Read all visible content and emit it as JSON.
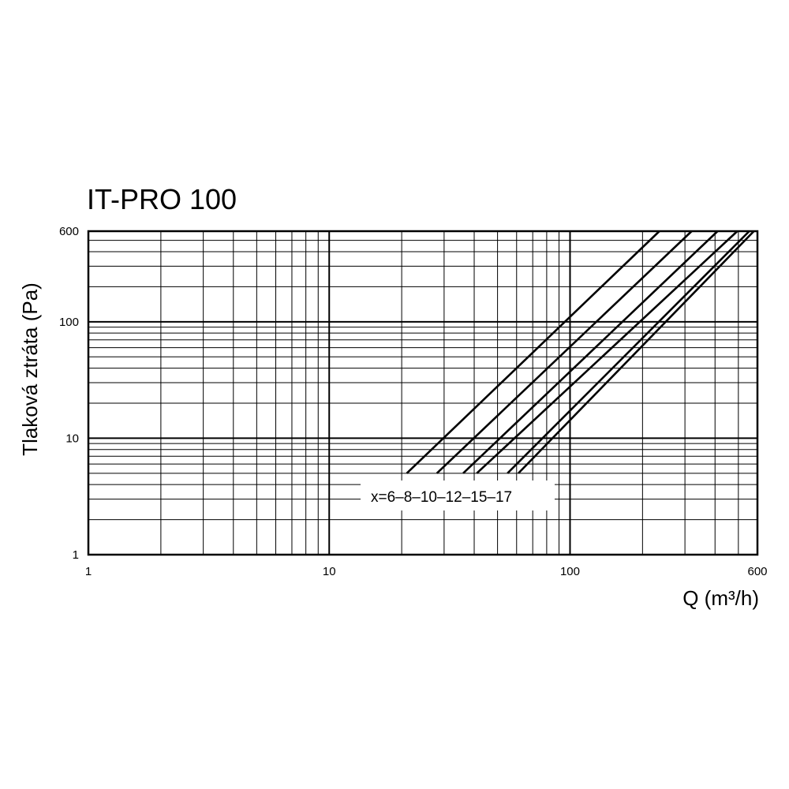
{
  "chart_data": {
    "type": "line",
    "title": "IT-PRO 100",
    "xlabel": "Q (m³/h)",
    "ylabel": "Tlaková ztráta (Pa)",
    "x_scale": "log",
    "y_scale": "log",
    "xlim": [
      1,
      600
    ],
    "ylim": [
      1,
      600
    ],
    "grid": true,
    "x_ticks": [
      {
        "value": 1,
        "label": "1"
      },
      {
        "value": 10,
        "label": "10"
      },
      {
        "value": 100,
        "label": "100"
      },
      {
        "value": 600,
        "label": "600"
      }
    ],
    "y_ticks": [
      {
        "value": 1,
        "label": "1"
      },
      {
        "value": 10,
        "label": "10"
      },
      {
        "value": 100,
        "label": "100"
      },
      {
        "value": 600,
        "label": "600"
      }
    ],
    "x_grid": [
      2,
      3,
      4,
      5,
      6,
      7,
      8,
      9,
      10,
      20,
      30,
      40,
      50,
      60,
      70,
      80,
      90,
      100,
      200,
      300,
      400,
      500,
      600
    ],
    "y_grid": [
      2,
      3,
      4,
      5,
      6,
      7,
      8,
      9,
      10,
      20,
      30,
      40,
      50,
      60,
      70,
      80,
      90,
      100,
      200,
      300,
      400,
      500,
      600
    ],
    "legend_label": "x=6–8–10–12–15–17",
    "series": [
      {
        "x": [
          21,
          235
        ],
        "y": [
          5,
          600
        ]
      },
      {
        "x": [
          28,
          320
        ],
        "y": [
          5,
          600
        ]
      },
      {
        "x": [
          36,
          410
        ],
        "y": [
          5,
          600
        ]
      },
      {
        "x": [
          41,
          495
        ],
        "y": [
          5,
          600
        ]
      },
      {
        "x": [
          55,
          555
        ],
        "y": [
          5,
          600
        ]
      },
      {
        "x": [
          61,
          580
        ],
        "y": [
          5,
          600
        ]
      }
    ]
  }
}
